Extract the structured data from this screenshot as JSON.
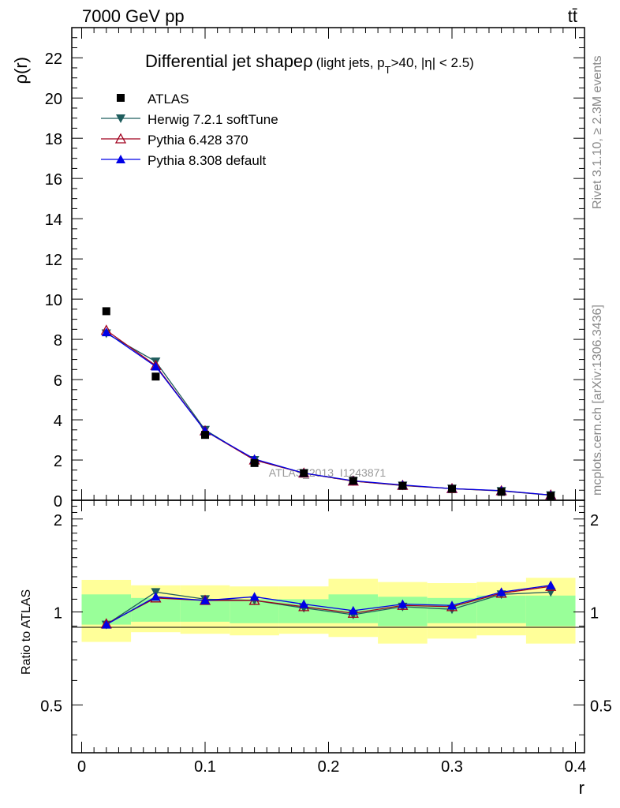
{
  "header": {
    "left": "7000 GeV pp",
    "right": "tt̄"
  },
  "side_texts": {
    "rivet": "Rivet 3.1.10, ≥ 2.3M events",
    "mcplots": "mcplots.cern.ch [arXiv:1306.3436]"
  },
  "chart_data": {
    "type": "line",
    "title": "Differential jet shapeρ",
    "subtitle": "(light jets, p",
    "subtitle_sub": "T",
    "subtitle_rest": ">40, |η| < 2.5)",
    "watermark": "ATLAS_2013_I1243871",
    "xlabel": "r",
    "ylabel": "ρ(r)",
    "ratio_ylabel": "Ratio to ATLAS",
    "xlim": [
      0,
      0.4
    ],
    "ylim": [
      0,
      23.5
    ],
    "ratio_ylim": [
      0.35,
      2.3
    ],
    "x_ticks": [
      "0",
      "0.1",
      "0.2",
      "0.3",
      "0.4"
    ],
    "y_ticks": [
      "0",
      "2",
      "4",
      "6",
      "8",
      "10",
      "12",
      "14",
      "16",
      "18",
      "20",
      "22"
    ],
    "ratio_ticks": [
      "0.5",
      "1",
      "2"
    ],
    "x": [
      0.02,
      0.06,
      0.1,
      0.14,
      0.18,
      0.22,
      0.26,
      0.3,
      0.34,
      0.38
    ],
    "bin_edges": [
      0.0,
      0.04,
      0.08,
      0.12,
      0.16,
      0.2,
      0.24,
      0.28,
      0.32,
      0.36,
      0.4
    ],
    "band_inner": [
      [
        0.91,
        1.14
      ],
      [
        0.93,
        1.11
      ],
      [
        0.93,
        1.1
      ],
      [
        0.92,
        1.1
      ],
      [
        0.92,
        1.1
      ],
      [
        0.92,
        1.14
      ],
      [
        0.9,
        1.12
      ],
      [
        0.92,
        1.11
      ],
      [
        0.92,
        1.13
      ],
      [
        0.9,
        1.13
      ]
    ],
    "band_outer": [
      [
        0.8,
        1.27
      ],
      [
        0.86,
        1.22
      ],
      [
        0.85,
        1.22
      ],
      [
        0.84,
        1.21
      ],
      [
        0.85,
        1.21
      ],
      [
        0.83,
        1.28
      ],
      [
        0.79,
        1.25
      ],
      [
        0.82,
        1.24
      ],
      [
        0.84,
        1.25
      ],
      [
        0.79,
        1.29
      ]
    ],
    "series": [
      {
        "name": "ATLAS",
        "color": "#000000",
        "marker": "square",
        "values": [
          9.4,
          6.15,
          3.25,
          1.85,
          1.35,
          0.97,
          0.72,
          0.57,
          0.42,
          0.22
        ],
        "ratio": [
          1,
          1,
          1,
          1,
          1,
          1,
          1,
          1,
          1,
          1
        ]
      },
      {
        "name": "Herwig 7.2.1 softTune",
        "color": "#1f5d5d",
        "marker": "triangle-down",
        "values": [
          8.3,
          6.9,
          3.5,
          2.0,
          1.35,
          0.95,
          0.73,
          0.58,
          0.46,
          0.25
        ],
        "ratio": [
          0.91,
          1.16,
          1.1,
          1.09,
          1.03,
          0.98,
          1.04,
          1.02,
          1.14,
          1.16
        ]
      },
      {
        "name": "Pythia 6.428 370",
        "color": "#a0001e",
        "marker": "triangle-open",
        "values": [
          8.45,
          6.7,
          3.45,
          2.0,
          1.35,
          0.95,
          0.74,
          0.58,
          0.47,
          0.26
        ],
        "ratio": [
          0.915,
          1.11,
          1.09,
          1.09,
          1.04,
          0.99,
          1.05,
          1.04,
          1.15,
          1.21
        ]
      },
      {
        "name": "Pythia 8.308 default",
        "color": "#0000e6",
        "marker": "triangle-up",
        "values": [
          8.35,
          6.65,
          3.45,
          2.05,
          1.35,
          0.97,
          0.76,
          0.58,
          0.48,
          0.26
        ],
        "ratio": [
          0.91,
          1.12,
          1.09,
          1.12,
          1.06,
          1.01,
          1.06,
          1.05,
          1.16,
          1.22
        ]
      }
    ]
  }
}
